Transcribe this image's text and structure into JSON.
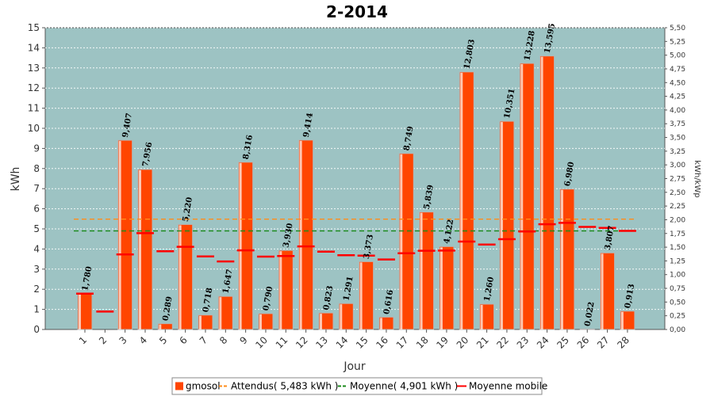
{
  "chart_data": {
    "type": "bar",
    "title": "2-2014",
    "xlabel": "Jour",
    "ylabel": "kWh",
    "y2label": "kWh/kWp",
    "ylim": [
      0,
      15
    ],
    "y2lim": [
      0,
      5.5
    ],
    "categories": [
      "1",
      "2",
      "3",
      "4",
      "5",
      "6",
      "7",
      "8",
      "9",
      "10",
      "11",
      "12",
      "13",
      "14",
      "15",
      "16",
      "17",
      "18",
      "19",
      "20",
      "21",
      "22",
      "23",
      "24",
      "25",
      "26",
      "27",
      "28"
    ],
    "yticks": [
      "0",
      "1",
      "2",
      "3",
      "4",
      "5",
      "6",
      "7",
      "8",
      "9",
      "10",
      "11",
      "12",
      "13",
      "14",
      "15"
    ],
    "y2ticks": [
      "0,00",
      "0,25",
      "0,50",
      "0,75",
      "1,00",
      "1,25",
      "1,50",
      "1,75",
      "2,00",
      "2,25",
      "2,50",
      "2,75",
      "3,00",
      "3,25",
      "3,50",
      "3,75",
      "4,00",
      "4,25",
      "4,50",
      "4,75",
      "5,00",
      "5,25",
      "5,50"
    ],
    "series": [
      {
        "name": "gmosol",
        "kind": "bar",
        "color": "#ff4500",
        "values": [
          1.78,
          0,
          9.407,
          7.956,
          0.289,
          5.22,
          0.718,
          1.647,
          8.316,
          0.79,
          3.93,
          9.414,
          0.823,
          1.291,
          3.373,
          0.616,
          8.749,
          5.839,
          4.122,
          12.803,
          1.26,
          10.351,
          13.228,
          13.595,
          6.98,
          0.022,
          3.807,
          0.913
        ],
        "labels": [
          "1,780",
          "",
          "9,407",
          "7,956",
          "0,289",
          "5,220",
          "0,718",
          "1,647",
          "8,316",
          "0,790",
          "3,930",
          "9,414",
          "0,823",
          "1,291",
          "3,373",
          "0,616",
          "8,749",
          "5,839",
          "4,122",
          "12,803",
          "1,260",
          "10,351",
          "13,228",
          "13,595",
          "6,980",
          "0,022",
          "3,807",
          "0,913"
        ]
      },
      {
        "name": "Attendus( 5,483 kWh )",
        "kind": "hline",
        "color": "#ff8c1a",
        "value": 5.483
      },
      {
        "name": "Moyenne( 4,901 kWh )",
        "kind": "hline",
        "color": "#1a8a1a",
        "value": 4.901
      },
      {
        "name": "Moyenne mobile",
        "kind": "step",
        "color": "#ff0000",
        "values": [
          1.78,
          0.89,
          3.73,
          4.79,
          3.89,
          4.11,
          3.63,
          3.38,
          3.93,
          3.62,
          3.65,
          4.13,
          3.87,
          3.69,
          3.67,
          3.48,
          3.79,
          3.91,
          3.92,
          4.37,
          4.22,
          4.49,
          4.87,
          5.23,
          5.3,
          5.1,
          5.05,
          4.9
        ]
      }
    ],
    "grid": true,
    "legend_position": "bottom"
  }
}
